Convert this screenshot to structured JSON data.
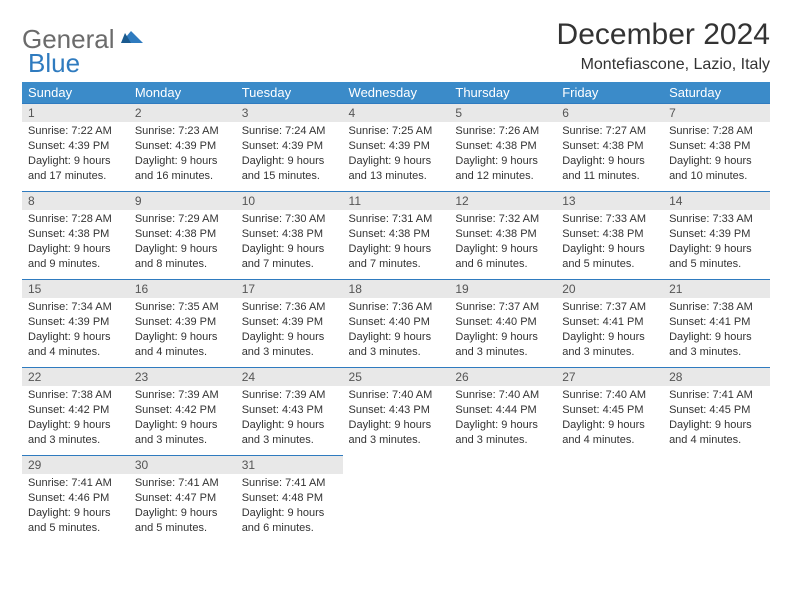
{
  "logo": {
    "general": "General",
    "blue": "Blue"
  },
  "title": "December 2024",
  "location": "Montefiascone, Lazio, Italy",
  "colors": {
    "header_bg": "#3b8bc9",
    "header_text": "#ffffff",
    "daynum_bg": "#e8e8e8",
    "border": "#2f7bbf",
    "logo_gray": "#6b6b6b",
    "logo_blue": "#2f7bbf"
  },
  "weekdays": [
    "Sunday",
    "Monday",
    "Tuesday",
    "Wednesday",
    "Thursday",
    "Friday",
    "Saturday"
  ],
  "weeks": [
    [
      {
        "n": "1",
        "sr": "7:22 AM",
        "ss": "4:39 PM",
        "dl": "9 hours and 17 minutes."
      },
      {
        "n": "2",
        "sr": "7:23 AM",
        "ss": "4:39 PM",
        "dl": "9 hours and 16 minutes."
      },
      {
        "n": "3",
        "sr": "7:24 AM",
        "ss": "4:39 PM",
        "dl": "9 hours and 15 minutes."
      },
      {
        "n": "4",
        "sr": "7:25 AM",
        "ss": "4:39 PM",
        "dl": "9 hours and 13 minutes."
      },
      {
        "n": "5",
        "sr": "7:26 AM",
        "ss": "4:38 PM",
        "dl": "9 hours and 12 minutes."
      },
      {
        "n": "6",
        "sr": "7:27 AM",
        "ss": "4:38 PM",
        "dl": "9 hours and 11 minutes."
      },
      {
        "n": "7",
        "sr": "7:28 AM",
        "ss": "4:38 PM",
        "dl": "9 hours and 10 minutes."
      }
    ],
    [
      {
        "n": "8",
        "sr": "7:28 AM",
        "ss": "4:38 PM",
        "dl": "9 hours and 9 minutes."
      },
      {
        "n": "9",
        "sr": "7:29 AM",
        "ss": "4:38 PM",
        "dl": "9 hours and 8 minutes."
      },
      {
        "n": "10",
        "sr": "7:30 AM",
        "ss": "4:38 PM",
        "dl": "9 hours and 7 minutes."
      },
      {
        "n": "11",
        "sr": "7:31 AM",
        "ss": "4:38 PM",
        "dl": "9 hours and 7 minutes."
      },
      {
        "n": "12",
        "sr": "7:32 AM",
        "ss": "4:38 PM",
        "dl": "9 hours and 6 minutes."
      },
      {
        "n": "13",
        "sr": "7:33 AM",
        "ss": "4:38 PM",
        "dl": "9 hours and 5 minutes."
      },
      {
        "n": "14",
        "sr": "7:33 AM",
        "ss": "4:39 PM",
        "dl": "9 hours and 5 minutes."
      }
    ],
    [
      {
        "n": "15",
        "sr": "7:34 AM",
        "ss": "4:39 PM",
        "dl": "9 hours and 4 minutes."
      },
      {
        "n": "16",
        "sr": "7:35 AM",
        "ss": "4:39 PM",
        "dl": "9 hours and 4 minutes."
      },
      {
        "n": "17",
        "sr": "7:36 AM",
        "ss": "4:39 PM",
        "dl": "9 hours and 3 minutes."
      },
      {
        "n": "18",
        "sr": "7:36 AM",
        "ss": "4:40 PM",
        "dl": "9 hours and 3 minutes."
      },
      {
        "n": "19",
        "sr": "7:37 AM",
        "ss": "4:40 PM",
        "dl": "9 hours and 3 minutes."
      },
      {
        "n": "20",
        "sr": "7:37 AM",
        "ss": "4:41 PM",
        "dl": "9 hours and 3 minutes."
      },
      {
        "n": "21",
        "sr": "7:38 AM",
        "ss": "4:41 PM",
        "dl": "9 hours and 3 minutes."
      }
    ],
    [
      {
        "n": "22",
        "sr": "7:38 AM",
        "ss": "4:42 PM",
        "dl": "9 hours and 3 minutes."
      },
      {
        "n": "23",
        "sr": "7:39 AM",
        "ss": "4:42 PM",
        "dl": "9 hours and 3 minutes."
      },
      {
        "n": "24",
        "sr": "7:39 AM",
        "ss": "4:43 PM",
        "dl": "9 hours and 3 minutes."
      },
      {
        "n": "25",
        "sr": "7:40 AM",
        "ss": "4:43 PM",
        "dl": "9 hours and 3 minutes."
      },
      {
        "n": "26",
        "sr": "7:40 AM",
        "ss": "4:44 PM",
        "dl": "9 hours and 3 minutes."
      },
      {
        "n": "27",
        "sr": "7:40 AM",
        "ss": "4:45 PM",
        "dl": "9 hours and 4 minutes."
      },
      {
        "n": "28",
        "sr": "7:41 AM",
        "ss": "4:45 PM",
        "dl": "9 hours and 4 minutes."
      }
    ],
    [
      {
        "n": "29",
        "sr": "7:41 AM",
        "ss": "4:46 PM",
        "dl": "9 hours and 5 minutes."
      },
      {
        "n": "30",
        "sr": "7:41 AM",
        "ss": "4:47 PM",
        "dl": "9 hours and 5 minutes."
      },
      {
        "n": "31",
        "sr": "7:41 AM",
        "ss": "4:48 PM",
        "dl": "9 hours and 6 minutes."
      },
      null,
      null,
      null,
      null
    ]
  ],
  "labels": {
    "sunrise": "Sunrise:",
    "sunset": "Sunset:",
    "daylight": "Daylight:"
  }
}
